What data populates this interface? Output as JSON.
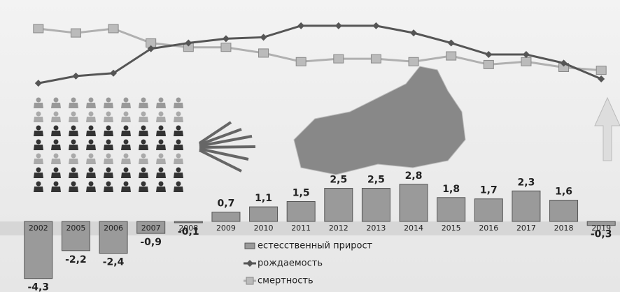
{
  "chart_data": {
    "type": "bar",
    "categories": [
      "2002",
      "2005",
      "2006",
      "2007",
      "2008",
      "2009",
      "2010",
      "2011",
      "2012",
      "2013",
      "2014",
      "2015",
      "2016",
      "2017",
      "2018",
      "2019"
    ],
    "series": [
      {
        "name": "естесственный прирост",
        "color": "#9a9a9a",
        "values": [
          -4.3,
          -2.2,
          -2.4,
          -0.9,
          -0.1,
          0.7,
          1.1,
          1.5,
          2.5,
          2.5,
          2.8,
          1.8,
          1.7,
          2.3,
          1.6,
          -0.3
        ],
        "value_labels": [
          "-4,3",
          "-2,2",
          "-2,4",
          "-0,9",
          "-0,1",
          "0,7",
          "1,1",
          "1,5",
          "2,5",
          "2,5",
          "2,8",
          "1,8",
          "1,7",
          "2,3",
          "1,6",
          "-0,3"
        ]
      },
      {
        "name": "рождаемость",
        "color": "#555555",
        "axis": "y2",
        "values": [
          10.5,
          11.0,
          11.2,
          12.9,
          13.3,
          13.6,
          13.7,
          14.5,
          14.5,
          14.5,
          14.0,
          13.3,
          12.5,
          12.5,
          11.9,
          10.8
        ]
      },
      {
        "name": "смертность",
        "color": "#b0b0b0",
        "axis": "y2",
        "values": [
          14.3,
          14.0,
          14.3,
          13.3,
          13.0,
          13.0,
          12.6,
          12.0,
          12.2,
          12.2,
          12.0,
          12.4,
          11.8,
          12.0,
          11.6,
          11.4
        ]
      }
    ],
    "ylim": [
      -5,
      4
    ],
    "y2lim": [
      9,
      16
    ]
  }
}
